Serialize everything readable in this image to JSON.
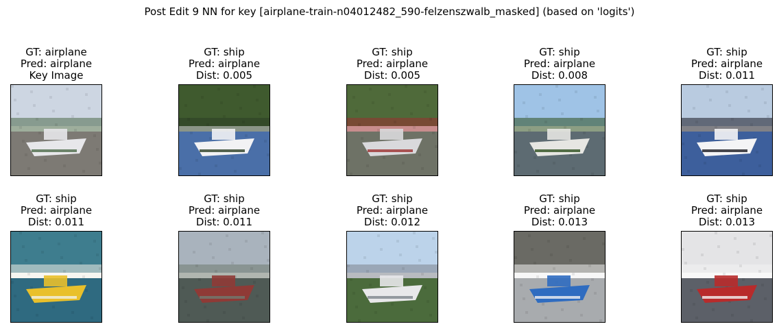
{
  "figure": {
    "title": "Post Edit 9 NN for key [airplane-train-n04012482_590-felzenszwalb_masked] (based on 'logits')"
  },
  "panels": [
    {
      "gt": "GT: airplane",
      "pred": "Pred: airplane",
      "extra": "Key Image",
      "image": "airfield-scene-image",
      "palette": {
        "sky": "#cdd6e2",
        "ground": "#7d7a74",
        "subject": "#e7e7ea",
        "accent": "#4e6b4a"
      }
    },
    {
      "gt": "GT: ship",
      "pred": "Pred: airplane",
      "extra": "Dist: 0.005",
      "image": "speedboat-image",
      "palette": {
        "sky": "#3f5a2e",
        "ground": "#4a6fa8",
        "subject": "#f2f2f4",
        "accent": "#2c3e26"
      }
    },
    {
      "gt": "GT: ship",
      "pred": "Pred: airplane",
      "extra": "Dist: 0.005",
      "image": "sailboat-dock-image",
      "palette": {
        "sky": "#4f6a3a",
        "ground": "#6e7266",
        "subject": "#d9d9dc",
        "accent": "#9b2f2f"
      }
    },
    {
      "gt": "GT: ship",
      "pred": "Pred: airplane",
      "extra": "Dist: 0.008",
      "image": "fishing-boat-image",
      "palette": {
        "sky": "#9fc3e6",
        "ground": "#5d6b72",
        "subject": "#e6e6e2",
        "accent": "#2d4f1e"
      }
    },
    {
      "gt": "GT: ship",
      "pred": "Pred: airplane",
      "extra": "Dist: 0.011",
      "image": "racing-boat-image",
      "palette": {
        "sky": "#b9cbe0",
        "ground": "#3d5f9c",
        "subject": "#f4f4f6",
        "accent": "#1a1a22"
      }
    },
    {
      "gt": "GT: ship",
      "pred": "Pred: airplane",
      "extra": "Dist: 0.011",
      "image": "pontoon-boat-image",
      "palette": {
        "sky": "#3e7d8e",
        "ground": "#2f6a80",
        "subject": "#e9c02b",
        "accent": "#f0efe6"
      }
    },
    {
      "gt": "GT: ship",
      "pred": "Pred: airplane",
      "extra": "Dist: 0.011",
      "image": "harbor-barge-image",
      "palette": {
        "sky": "#a9b3bd",
        "ground": "#4f5a55",
        "subject": "#8f3a36",
        "accent": "#6f7a70"
      }
    },
    {
      "gt": "GT: ship",
      "pred": "Pred: airplane",
      "extra": "Dist: 0.012",
      "image": "city-ferry-image",
      "palette": {
        "sky": "#bcd3ea",
        "ground": "#4b6b3c",
        "subject": "#e8e8ea",
        "accent": "#7d848c"
      }
    },
    {
      "gt": "GT: ship",
      "pred": "Pred: airplane",
      "extra": "Dist: 0.013",
      "image": "patrol-boat-image",
      "palette": {
        "sky": "#6a6a64",
        "ground": "#a8abae",
        "subject": "#2f6cc0",
        "accent": "#f1f1f1"
      }
    },
    {
      "gt": "GT: ship",
      "pred": "Pred: airplane",
      "extra": "Dist: 0.013",
      "image": "fireboat-image",
      "palette": {
        "sky": "#e4e4e6",
        "ground": "#5c6068",
        "subject": "#b82b2b",
        "accent": "#f2f2f2"
      }
    }
  ]
}
